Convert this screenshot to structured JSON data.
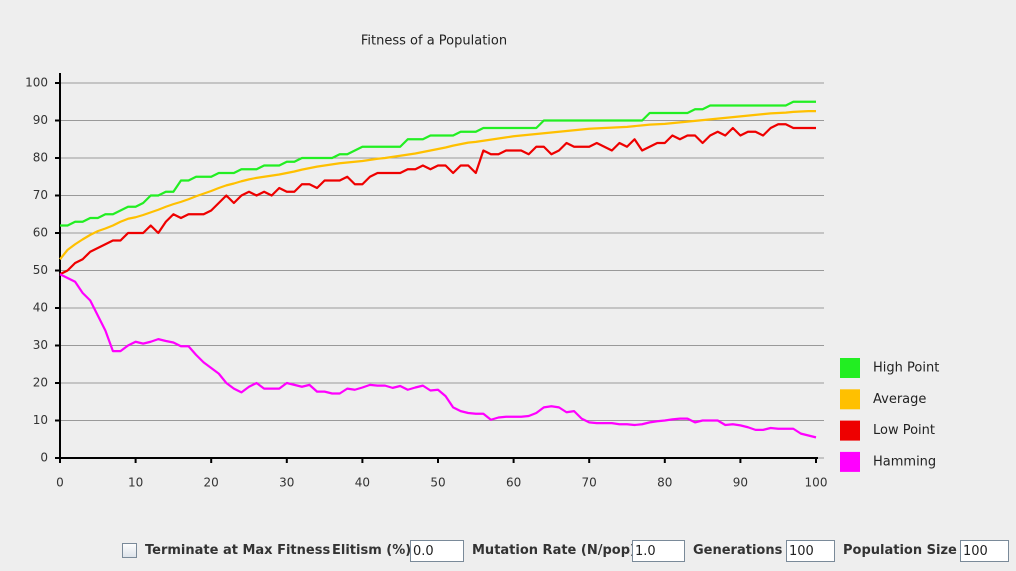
{
  "chart_data": {
    "type": "line",
    "title": "Fitness of a Population",
    "x": [
      0,
      1,
      2,
      3,
      4,
      5,
      6,
      7,
      8,
      9,
      10,
      11,
      12,
      13,
      14,
      15,
      16,
      17,
      18,
      19,
      20,
      21,
      22,
      23,
      24,
      25,
      26,
      27,
      28,
      29,
      30,
      31,
      32,
      33,
      34,
      35,
      36,
      37,
      38,
      39,
      40,
      41,
      42,
      43,
      44,
      45,
      46,
      47,
      48,
      49,
      50,
      51,
      52,
      53,
      54,
      55,
      56,
      57,
      58,
      59,
      60,
      61,
      62,
      63,
      64,
      65,
      66,
      67,
      68,
      69,
      70,
      71,
      72,
      73,
      74,
      75,
      76,
      77,
      78,
      79,
      80,
      81,
      82,
      83,
      84,
      85,
      86,
      87,
      88,
      89,
      90,
      91,
      92,
      93,
      94,
      95,
      96,
      97,
      98,
      99,
      100
    ],
    "series": [
      {
        "name": "High Point",
        "color": "#22ee22",
        "values": [
          62,
          62,
          63,
          63,
          64,
          64,
          65,
          65,
          66,
          67,
          67,
          68,
          70,
          70,
          71,
          71,
          74,
          74,
          75,
          75,
          75,
          76,
          76,
          76,
          77,
          77,
          77,
          78,
          78,
          78,
          79,
          79,
          80,
          80,
          80,
          80,
          80,
          81,
          81,
          82,
          83,
          83,
          83,
          83,
          83,
          83,
          85,
          85,
          85,
          86,
          86,
          86,
          86,
          87,
          87,
          87,
          88,
          88,
          88,
          88,
          88,
          88,
          88,
          88,
          90,
          90,
          90,
          90,
          90,
          90,
          90,
          90,
          90,
          90,
          90,
          90,
          90,
          90,
          92,
          92,
          92,
          92,
          92,
          92,
          93,
          93,
          94,
          94,
          94,
          94,
          94,
          94,
          94,
          94,
          94,
          94,
          94,
          95,
          95,
          95,
          95
        ]
      },
      {
        "name": "Average",
        "color": "#ffc000",
        "values": [
          53,
          55.5,
          57,
          58.3,
          59.5,
          60.5,
          61.2,
          62,
          63,
          63.8,
          64.2,
          64.8,
          65.5,
          66.2,
          67,
          67.7,
          68.3,
          69,
          69.8,
          70.5,
          71.2,
          72,
          72.7,
          73.2,
          73.8,
          74.3,
          74.7,
          75,
          75.3,
          75.6,
          76,
          76.4,
          76.9,
          77.3,
          77.7,
          78,
          78.3,
          78.6,
          78.8,
          79,
          79.2,
          79.5,
          79.8,
          80,
          80.3,
          80.6,
          80.9,
          81.2,
          81.6,
          82,
          82.4,
          82.8,
          83.3,
          83.7,
          84.1,
          84.3,
          84.6,
          84.9,
          85.2,
          85.5,
          85.8,
          86,
          86.2,
          86.4,
          86.6,
          86.8,
          87,
          87.2,
          87.4,
          87.6,
          87.8,
          87.9,
          88,
          88.1,
          88.2,
          88.3,
          88.5,
          88.7,
          88.9,
          89,
          89.1,
          89.3,
          89.5,
          89.7,
          89.9,
          90.1,
          90.3,
          90.5,
          90.7,
          90.9,
          91.1,
          91.3,
          91.5,
          91.7,
          91.9,
          92,
          92.1,
          92.3,
          92.4,
          92.5,
          92.5
        ]
      },
      {
        "name": "Low Point",
        "color": "#ee0000",
        "values": [
          49,
          50,
          52,
          53,
          55,
          56,
          57,
          58,
          58,
          60,
          60,
          60,
          62,
          60,
          63,
          65,
          64,
          65,
          65,
          65,
          66,
          68,
          70,
          68,
          70,
          71,
          70,
          71,
          70,
          72,
          71,
          71,
          73,
          73,
          72,
          74,
          74,
          74,
          75,
          73,
          73,
          75,
          76,
          76,
          76,
          76,
          77,
          77,
          78,
          77,
          78,
          78,
          76,
          78,
          78,
          76,
          82,
          81,
          81,
          82,
          82,
          82,
          81,
          83,
          83,
          81,
          82,
          84,
          83,
          83,
          83,
          84,
          83,
          82,
          84,
          83,
          85,
          82,
          83,
          84,
          84,
          86,
          85,
          86,
          86,
          84,
          86,
          87,
          86,
          88,
          86,
          87,
          87,
          86,
          88,
          89,
          89,
          88,
          88,
          88,
          88
        ]
      },
      {
        "name": "Hamming",
        "color": "#ff00ff",
        "values": [
          49,
          48,
          47,
          44,
          42,
          38,
          34,
          28.5,
          28.5,
          30,
          31,
          30.5,
          31,
          31.7,
          31.2,
          30.8,
          29.8,
          29.8,
          27.5,
          25.5,
          24,
          22.5,
          20,
          18.5,
          17.5,
          19,
          20,
          18.5,
          18.5,
          18.5,
          20,
          19.5,
          19,
          19.5,
          17.7,
          17.7,
          17.2,
          17.2,
          18.5,
          18.2,
          18.8,
          19.5,
          19.3,
          19.3,
          18.7,
          19.2,
          18.2,
          18.8,
          19.3,
          18,
          18.2,
          16.5,
          13.5,
          12.5,
          12,
          11.8,
          11.8,
          10.2,
          10.8,
          11,
          11,
          11,
          11.2,
          12,
          13.5,
          13.8,
          13.5,
          12.2,
          12.5,
          10.5,
          9.5,
          9.3,
          9.3,
          9.3,
          9,
          9,
          8.8,
          9,
          9.5,
          9.8,
          10,
          10.3,
          10.5,
          10.5,
          9.5,
          10,
          10,
          10,
          8.8,
          9,
          8.7,
          8.2,
          7.5,
          7.5,
          8,
          7.8,
          7.8,
          7.8,
          6.5,
          6,
          5.5
        ]
      }
    ],
    "xlim": [
      0,
      100
    ],
    "ylim": [
      0,
      100
    ],
    "xticks": [
      0,
      10,
      20,
      30,
      40,
      50,
      60,
      70,
      80,
      90,
      100
    ],
    "yticks": [
      0,
      10,
      20,
      30,
      40,
      50,
      60,
      70,
      80,
      90,
      100
    ],
    "grid": true,
    "legend": "right"
  },
  "controls": {
    "checkbox_label": "Terminate at Max Fitness",
    "fields": [
      {
        "label": "Elitism (%)",
        "value": "0.0"
      },
      {
        "label": "Mutation Rate (N/pop)",
        "value": "1.0"
      },
      {
        "label": "Generations",
        "value": "100"
      },
      {
        "label": "Population Size",
        "value": "100"
      }
    ]
  }
}
